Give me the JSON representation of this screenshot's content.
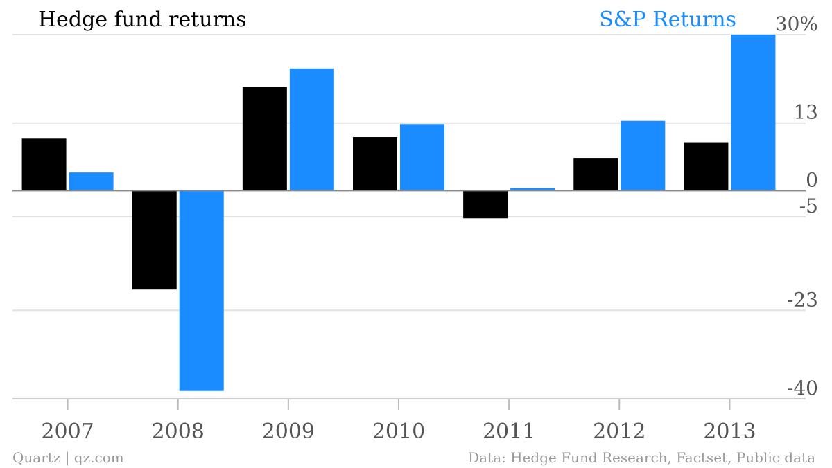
{
  "chart_data": {
    "type": "bar",
    "categories": [
      "2007",
      "2008",
      "2009",
      "2010",
      "2011",
      "2012",
      "2013"
    ],
    "series": [
      {
        "name": "Hedge fund returns",
        "values": [
          10,
          -19,
          20,
          10.3,
          -5.3,
          6.3,
          9.3
        ],
        "color": "#000000"
      },
      {
        "name": "S&P Returns",
        "values": [
          3.5,
          -38.5,
          23.5,
          12.8,
          0.5,
          13.4,
          30
        ],
        "color": "#1a8cff"
      }
    ],
    "y_ticks": [
      {
        "value": 30,
        "label": "30%"
      },
      {
        "value": 13,
        "label": "13"
      },
      {
        "value": 0,
        "label": "0"
      },
      {
        "value": -5,
        "label": "-5"
      },
      {
        "value": -23,
        "label": "-23"
      },
      {
        "value": -40,
        "label": "-40"
      }
    ],
    "ylim": [
      -40,
      30
    ],
    "grid": true,
    "legend_position": "top"
  },
  "footer": {
    "source_left": "Quartz | qz.com",
    "source_right": "Data: Hedge Fund Research, Factset, Public data"
  },
  "colors": {
    "hedge": "#000000",
    "sp": "#1a8cff",
    "text": "#555555",
    "footer": "#999999"
  }
}
